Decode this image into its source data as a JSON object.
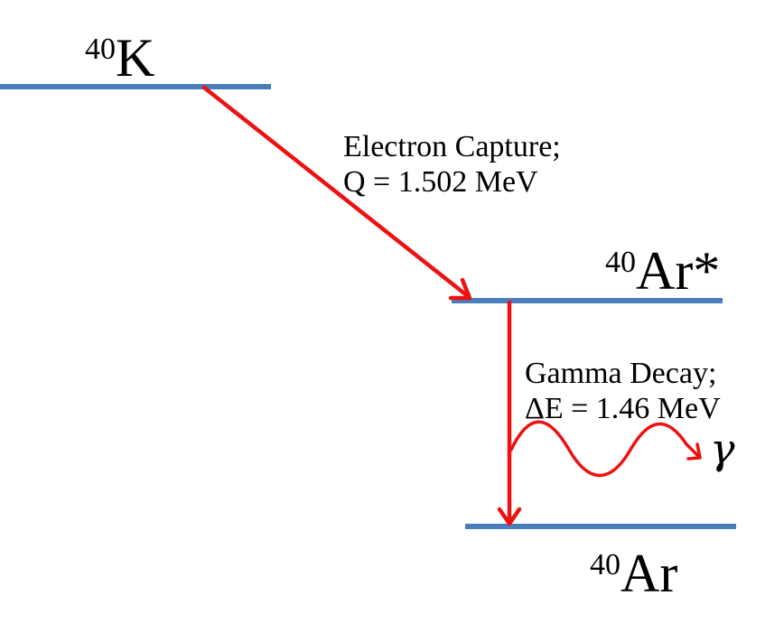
{
  "levels": {
    "k40": {
      "mass_number": "40",
      "symbol": "K"
    },
    "ar40_excited": {
      "mass_number": "40",
      "symbol": "Ar*"
    },
    "ar40_ground": {
      "mass_number": "40",
      "symbol": "Ar"
    }
  },
  "transitions": {
    "electron_capture": {
      "line1": "Electron Capture;",
      "line2": "Q = 1.502 MeV"
    },
    "gamma_decay": {
      "line1": "Gamma Decay;",
      "line2": "ΔE = 1.46 MeV",
      "photon_symbol": "γ"
    }
  },
  "colors": {
    "level_line": "#4a7ebb",
    "arrow": "#ee1111",
    "text": "#000000"
  }
}
